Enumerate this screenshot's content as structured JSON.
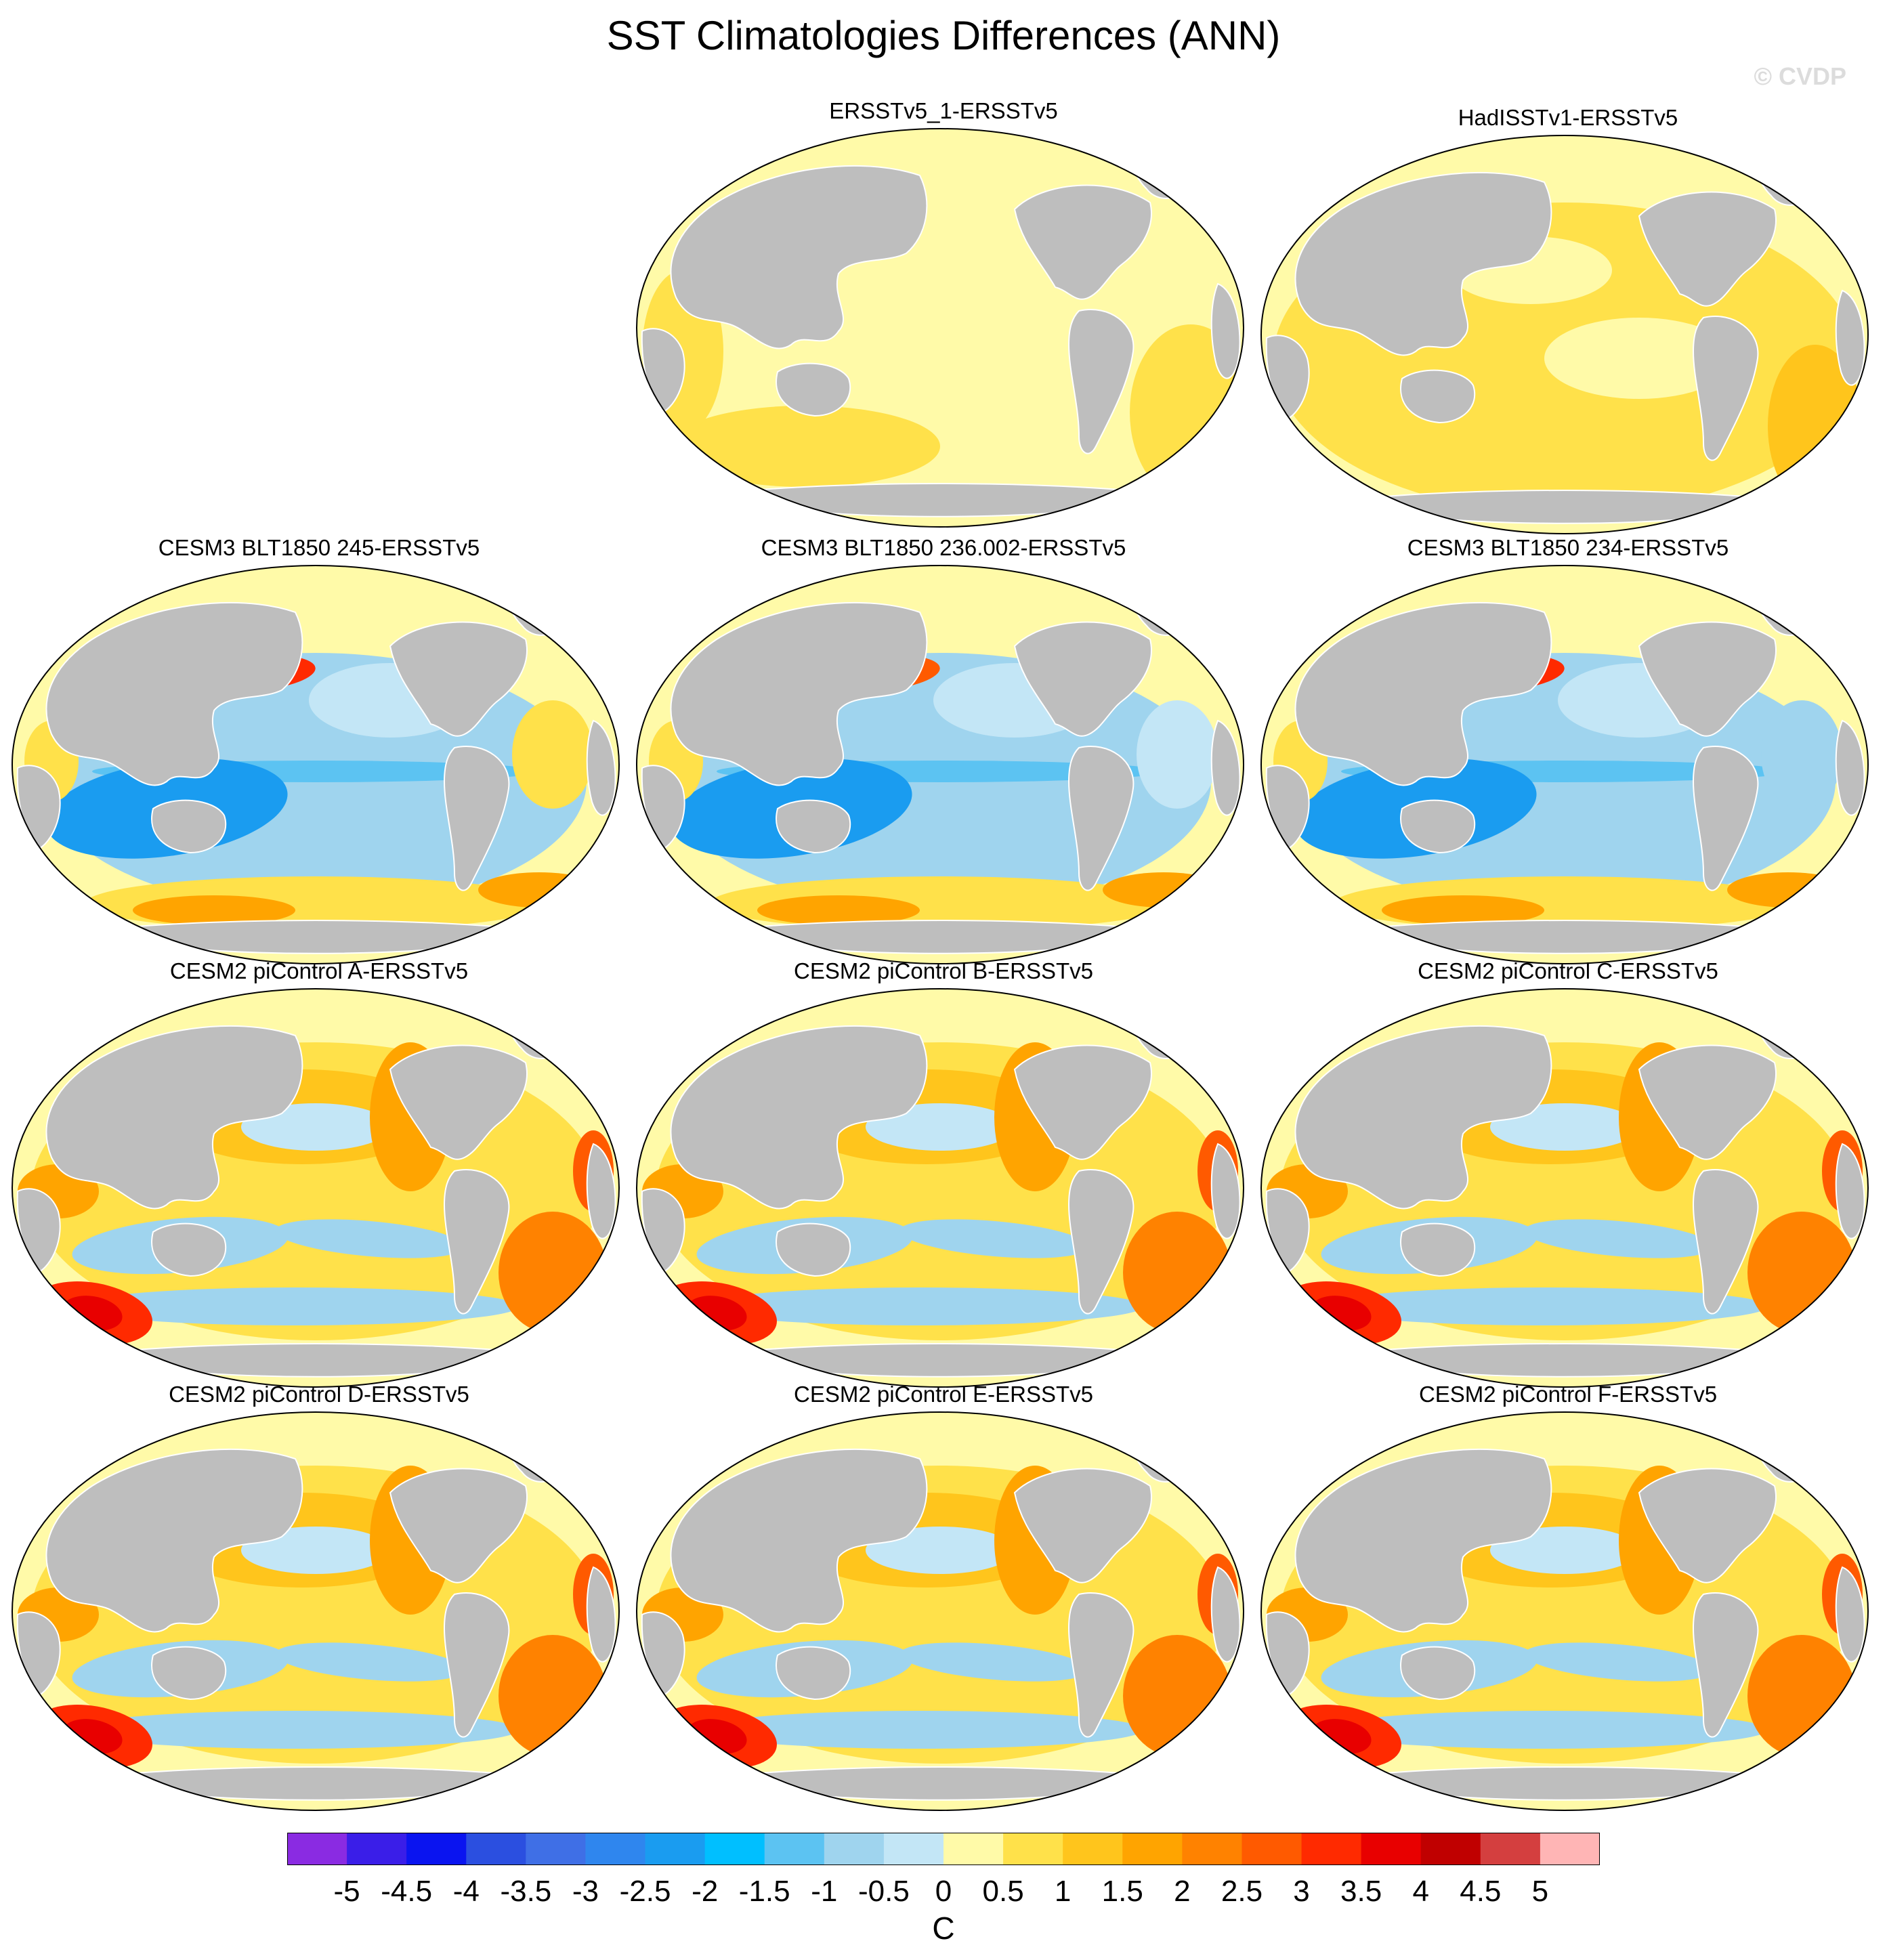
{
  "title": "SST Climatologies Differences (ANN)",
  "watermark": "© CVDP",
  "panels": [
    {
      "title": "ERSSTv5_1-ERSSTv5",
      "style": "obs-small"
    },
    {
      "title": "HadISSTv1-ERSSTv5",
      "style": "obs-warm"
    },
    {
      "title": "CESM3 BLT1850 245-ERSSTv5",
      "style": "cesm3-a"
    },
    {
      "title": "CESM3 BLT1850 236.002-ERSSTv5",
      "style": "cesm3-b"
    },
    {
      "title": "CESM3 BLT1850 234-ERSSTv5",
      "style": "cesm3-c"
    },
    {
      "title": "CESM2 piControl A-ERSSTv5",
      "style": "cesm2"
    },
    {
      "title": "CESM2 piControl B-ERSSTv5",
      "style": "cesm2"
    },
    {
      "title": "CESM2 piControl C-ERSSTv5",
      "style": "cesm2"
    },
    {
      "title": "CESM2 piControl D-ERSSTv5",
      "style": "cesm2"
    },
    {
      "title": "CESM2 piControl E-ERSSTv5",
      "style": "cesm2"
    },
    {
      "title": "CESM2 piControl F-ERSSTv5",
      "style": "cesm2"
    }
  ],
  "colorbar": {
    "units": "C",
    "labels": [
      "-5",
      "-4.5",
      "-4",
      "-3.5",
      "-3",
      "-2.5",
      "-2",
      "-1.5",
      "-1",
      "-0.5",
      "0",
      "0.5",
      "1",
      "1.5",
      "2",
      "2.5",
      "3",
      "3.5",
      "4",
      "4.5",
      "5"
    ],
    "colors": [
      "#8a2be2",
      "#3a1ee8",
      "#0a14f0",
      "#2b4fe0",
      "#3f6fe6",
      "#2f86ee",
      "#1a9cf0",
      "#00bfff",
      "#5cc3f2",
      "#9fd4ee",
      "#c3e6f6",
      "#fffaa8",
      "#ffe14a",
      "#ffc51c",
      "#ffa400",
      "#ff8200",
      "#ff5a00",
      "#ff2a00",
      "#e80000",
      "#c00000",
      "#d43f3f",
      "#ffb5b5"
    ]
  }
}
